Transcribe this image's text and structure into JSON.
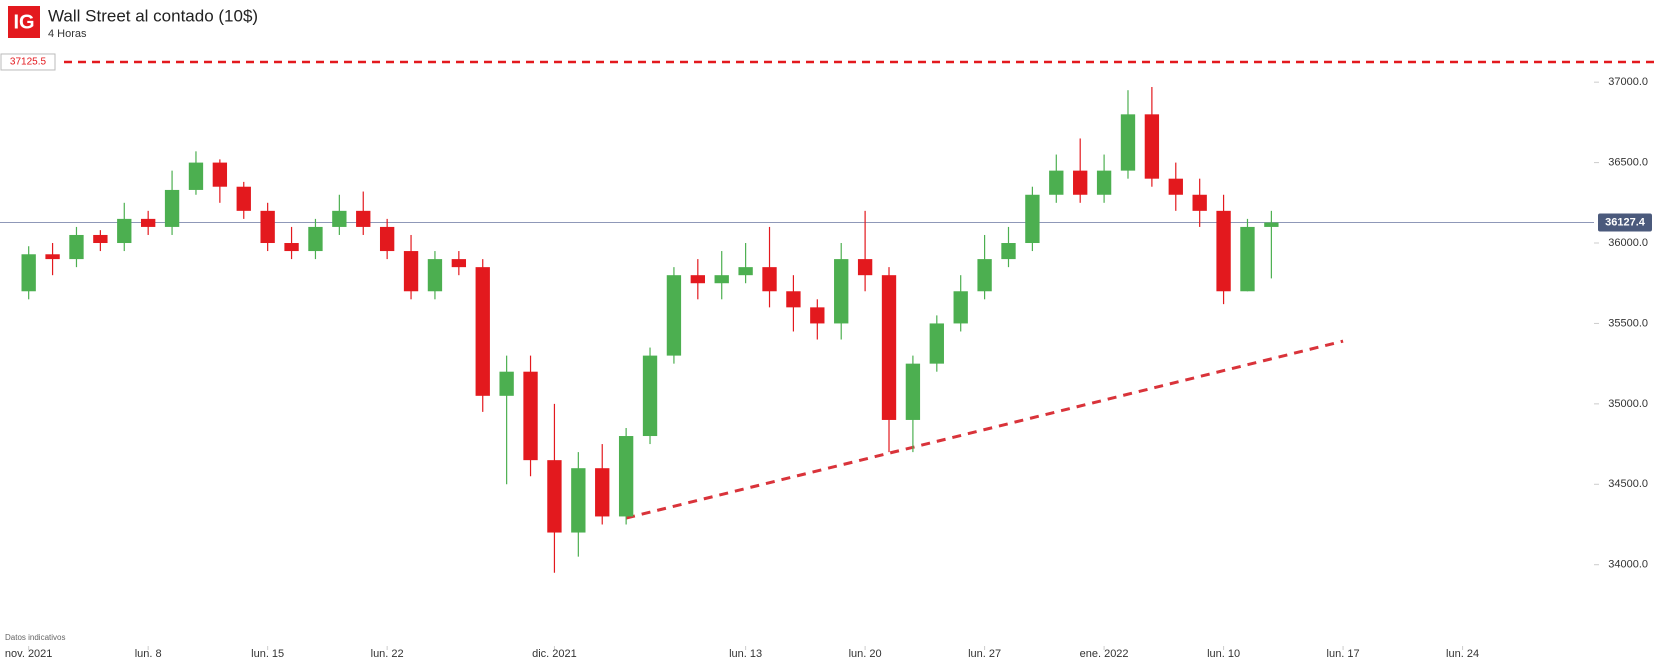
{
  "logo": "IG",
  "chart_data": {
    "type": "candlestick",
    "title": "Wall Street al contado (10$)",
    "subtitle": "4 Horas",
    "footnote": "Datos indicativos",
    "up_color": "#4caf50",
    "down_color": "#e3191e",
    "open": [
      35700,
      35930,
      35900,
      36050,
      36000,
      36150,
      36100,
      36330,
      36500,
      36350,
      36200,
      36000,
      35950,
      36100,
      36200,
      36100,
      35950,
      35700,
      35900,
      35850,
      35050,
      35200,
      34650,
      34200,
      34600,
      34300,
      34800,
      35300,
      35800,
      35750,
      35800,
      35850,
      35700,
      35600,
      35500,
      35900,
      35800,
      34900,
      35250,
      35500,
      35700,
      35900,
      36000,
      36300,
      36450,
      36300,
      36450,
      36800,
      36400,
      36300,
      36200,
      35700,
      36100
    ],
    "high": [
      35980,
      36000,
      36100,
      36080,
      36250,
      36200,
      36450,
      36570,
      36520,
      36380,
      36250,
      36100,
      36150,
      36300,
      36320,
      36150,
      36050,
      35950,
      35950,
      35900,
      35300,
      35300,
      35000,
      34700,
      34750,
      34850,
      35350,
      35850,
      35900,
      35950,
      36000,
      36100,
      35800,
      35650,
      36000,
      36200,
      35850,
      35300,
      35550,
      35800,
      36050,
      36100,
      36350,
      36550,
      36650,
      36550,
      36950,
      36970,
      36500,
      36400,
      36300,
      36150,
      36200
    ],
    "low": [
      35650,
      35800,
      35850,
      35950,
      35950,
      36050,
      36050,
      36300,
      36250,
      36150,
      35950,
      35900,
      35900,
      36050,
      36050,
      35900,
      35650,
      35650,
      35800,
      34950,
      34500,
      34550,
      33950,
      34050,
      34250,
      34250,
      34750,
      35250,
      35650,
      35650,
      35750,
      35600,
      35450,
      35400,
      35400,
      35700,
      34700,
      34700,
      35200,
      35450,
      35650,
      35850,
      35950,
      36250,
      36250,
      36250,
      36400,
      36350,
      36200,
      36100,
      35620,
      35700,
      35780
    ],
    "close": [
      35930,
      35900,
      36050,
      36000,
      36150,
      36100,
      36330,
      36500,
      36350,
      36200,
      36000,
      35950,
      36100,
      36200,
      36100,
      35950,
      35700,
      35900,
      35850,
      35050,
      35200,
      34650,
      34200,
      34600,
      34300,
      34800,
      35300,
      35800,
      35750,
      35800,
      35850,
      35700,
      35600,
      35500,
      35900,
      35800,
      34900,
      35250,
      35500,
      35700,
      35900,
      36000,
      36300,
      36450,
      36300,
      36450,
      36800,
      36400,
      36300,
      36200,
      35700,
      36100,
      36127.4
    ],
    "last_price": 36127.4,
    "hline": {
      "value": 37125.5,
      "color": "#e3191e"
    },
    "trendline": {
      "x": [
        25,
        55
      ],
      "y": [
        34290,
        35390
      ],
      "color": "#d9333a"
    },
    "xlim": [
      -1.2,
      65.5
    ],
    "xticks": [
      {
        "value": 0,
        "label": "nov. 2021"
      },
      {
        "value": 5,
        "label": "lun. 8"
      },
      {
        "value": 10,
        "label": "lun. 15"
      },
      {
        "value": 15,
        "label": "lun. 22"
      },
      {
        "value": 22,
        "label": "dic. 2021"
      },
      {
        "value": 30,
        "label": "lun. 13"
      },
      {
        "value": 35,
        "label": "lun. 20"
      },
      {
        "value": 40,
        "label": "lun. 27"
      },
      {
        "value": 45,
        "label": "ene. 2022"
      },
      {
        "value": 50,
        "label": "lun. 10"
      },
      {
        "value": 55,
        "label": "lun. 17"
      },
      {
        "value": 60,
        "label": "lun. 24"
      }
    ],
    "ylim": [
      33650,
      37200
    ],
    "yticks": [
      {
        "value": 34000,
        "label": "34000.0"
      },
      {
        "value": 34500,
        "label": "34500.0"
      },
      {
        "value": 35000,
        "label": "35000.0"
      },
      {
        "value": 35500,
        "label": "35500.0"
      },
      {
        "value": 36000,
        "label": "36000.0"
      },
      {
        "value": 36500,
        "label": "36500.0"
      },
      {
        "value": 37000,
        "label": "37000.0"
      }
    ]
  }
}
